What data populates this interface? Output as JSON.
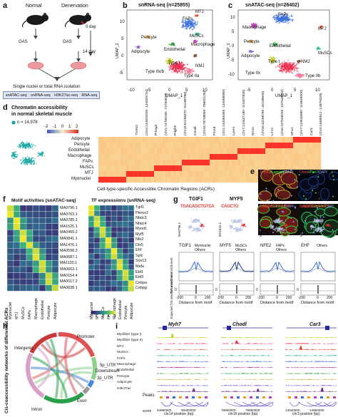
{
  "panel_a": {
    "label": "a",
    "normal": "Normal",
    "denervation": "Denervation",
    "day0": "0 day",
    "day14": "14 day",
    "gas1": "GAS",
    "gas2": "GAS",
    "isolation": "Single nuclei or total RNA isolation",
    "assays": [
      "snATAC-seq",
      "snRNA-seq",
      "H3K27ac-seq",
      "RNA-seq"
    ]
  },
  "panel_b": {
    "label": "b",
    "title": "snRNA-seq (n=25855)",
    "xlabel": "UMAP_1",
    "ylabel": "UMAP_2",
    "xticks": [
      "-10",
      "-5",
      "0",
      "5",
      "10"
    ],
    "yticks": [
      "10",
      "5",
      "0",
      "-5"
    ],
    "clusters": [
      "MTJ",
      "FAPs",
      "MuSCs",
      "Pericyte",
      "Macrophage",
      "Adipocyte",
      "Endothelial",
      "Type I",
      "NMJ",
      "Type IIx/b",
      "Type IIa"
    ],
    "colors": [
      "#e8462a",
      "#3a6fd8",
      "#2fb58a",
      "#e8a020",
      "#c23bb0",
      "#8a5cd0",
      "#2e9c3e",
      "#c9cc2d",
      "#7a4a2a",
      "#e83050",
      "#f07a9a"
    ]
  },
  "panel_c": {
    "label": "c",
    "title": "snATAC-seq (n=26402)",
    "xlabel": "UMAP_1",
    "ylabel": "UMAP_2",
    "xticks": [
      "-5",
      "0",
      "5",
      "10"
    ],
    "yticks": [
      "10",
      "5",
      "0",
      "-5",
      "-10"
    ],
    "clusters": [
      "FAPs",
      "MTJ",
      "Macrophage",
      "Pericyte",
      "Adipocyte",
      "MuSCs",
      "Endothelial",
      "Type I",
      "NMJ",
      "Type IIx",
      "Type IIb"
    ]
  },
  "panel_d": {
    "label": "d",
    "title_line1": "Chromatin accessibility",
    "title_line2": "in normal skeletal muscle",
    "n_label": "n = 14,978",
    "colorbar_ticks": [
      "-2",
      "-1",
      "0",
      "1",
      "2"
    ],
    "gene_labels": [
      "Trim63",
      "(chr4:134920200\n-134920734)",
      "Prkag3",
      "(chr1:74780180\n-74790620)",
      "Pdgfrb",
      "(chr18:61198370\n-61198788)",
      "Chodl",
      "(chr16:78738050\n-78802105)",
      "Fmod",
      "(chr1:134056350\n-134058990)",
      "Lyve1",
      "(chr7:110407180\n-110407830)",
      "Nrros",
      "(chr16:32188780\n-32189600)",
      "Lrrn1",
      "(chr6:107548200\n-107548920)",
      "Mrvi1",
      "(chr7:110648380\n-110649000)",
      "Car3",
      "(chr3:14685812\n-14875028)"
    ],
    "row_labels": [
      "Adipocyte",
      "Pericyte",
      "Endothelial",
      "Macrophage",
      "FAPs",
      "MuSCs",
      "MTJ",
      "Myonuclei"
    ],
    "xlabel": "Cell-type-specific Accessible Chromatin Regions (ACRs)"
  },
  "panel_e": {
    "label": "e",
    "images": [
      {
        "caption": [
          "Trim63",
          "/Laminin",
          "/DAPI"
        ],
        "colors": [
          "#ff4040",
          "#40ff40",
          "#9ab0ff"
        ]
      },
      {
        "caption": [
          "Chodl",
          "/Pax7",
          "/DAPI"
        ],
        "colors": [
          "#ff4040",
          "#40ff40",
          "#9ab0ff"
        ]
      },
      {
        "caption": [
          "Prkag3",
          "/Laminin",
          "/DAPI"
        ],
        "colors": [
          "#ff4040",
          "#40ff40",
          "#9ab0ff"
        ]
      },
      {
        "caption": [
          "Scara5",
          "/Laminin",
          "/DAPI"
        ],
        "colors": [
          "#ff4040",
          "#40ff40",
          "#9ab0ff"
        ]
      }
    ]
  },
  "panel_f": {
    "label": "f",
    "title_left": "Motif activities (snATAC-seq)",
    "title_right": "TF expressions (snRNA-seq)",
    "motifs": [
      "MA0796.1",
      "MA0763.1",
      "MA0785.1",
      "MA1525.1",
      "MA0499.2",
      "MA0841.1",
      "MA1476.1",
      "MA0598.3",
      "MA0687.1",
      "MA1120.1",
      "MA0663.1",
      "MA0154.4",
      "MA0017.2",
      "MA0838.1"
    ],
    "tfs": [
      "Tgif1",
      "Pknox2",
      "Nfatc3",
      "Nfatc4",
      "Myod1",
      "Myf5",
      "Nfe2",
      "Dlx5",
      "Ehf",
      "Spic",
      "Sox13",
      "Mafa",
      "Ebf1",
      "Ebf3",
      "Cebpa",
      "Cebpg"
    ],
    "columns": [
      "Myonuclei",
      "MTJ",
      "MuSCs",
      "FAPs",
      "Macrophage",
      "Endothelial",
      "Pericyte",
      "Adipocyte"
    ],
    "colorbar_ticks": [
      "-2",
      "-1",
      "0",
      "1",
      "2"
    ]
  },
  "panel_g": {
    "label": "g",
    "tfs": [
      {
        "name": "TGIF1",
        "motif": "MA0796.1",
        "logo": "TGACAGCTGTCA",
        "legend": [
          "Myonuclei",
          "Others"
        ],
        "color": "#3a6fd8"
      },
      {
        "name": "MYF5",
        "motif": "MA1641.1",
        "logo": "CAGCTG",
        "legend": [
          "MuSCs",
          "Others"
        ],
        "color": "#1f3d8c"
      },
      {
        "name": "NFE2",
        "motif": "MA0841.1",
        "logo": "ATGACTCAGC",
        "legend": [
          "FAPs",
          "Others"
        ],
        "color": "#3a6fd8"
      },
      {
        "name": "EHF",
        "motif": "MA0598.3",
        "logo": "ACCGGAAGT",
        "legend": [
          "Others"
        ],
        "color": "#3a6fd8"
      }
    ],
    "ylabel_top": "Tn5 insertion enrichment",
    "ylabel_bottom": "Expected Tn5 insertion enrichment",
    "xlabel": "Distance from motif",
    "xticks": [
      "-200",
      "0",
      "200"
    ],
    "y_tick_label": "0"
  },
  "panel_h": {
    "label": "h",
    "ylabel": "Cis-coaccessibility networks of differential ACRs",
    "segments": [
      "Promoter",
      "5p_UTR",
      "Downstream",
      "3p_UTR",
      "Exon",
      "Intron",
      "Intergenic"
    ]
  },
  "panel_i": {
    "label": "i",
    "genes": [
      "Myh7",
      "Chodl",
      "Car3"
    ],
    "tracks": [
      "Myofiber (type I)",
      "Myofiber (type II)",
      "MTJ",
      "MuSCs",
      "FAPs",
      "Macrophage",
      "Endothelial",
      "Pericyte",
      "Adipocyte",
      "H3K27ac"
    ],
    "track_colors": [
      "#c9cc2d",
      "#e83050",
      "#e8462a",
      "#2fb58a",
      "#3a6fd8",
      "#c23bb0",
      "#2e9c3e",
      "#e8a020",
      "#8a5cd0",
      "#6a2a8a"
    ],
    "peaks_label": "Peaks",
    "score_label": "score",
    "score_ticks": [
      "0",
      "1"
    ],
    "x_ticks_1": [
      "54990000",
      "55000000"
    ],
    "x_ticks_2": [
      "78850000",
      "78860000"
    ],
    "x_ticks_3": [
      "14840000",
      "14850000"
    ],
    "x_labels": [
      "chr14 position (bp)",
      "chr16 position (bp)",
      "chr3 position (bp)"
    ]
  }
}
